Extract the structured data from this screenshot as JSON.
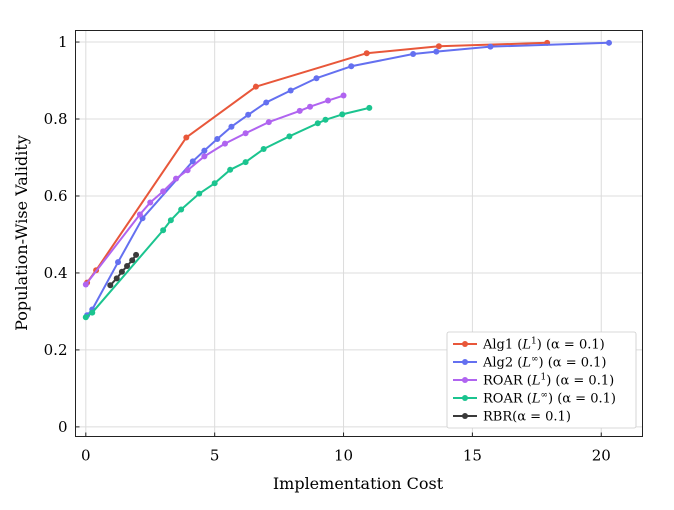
{
  "chart_data": {
    "type": "line",
    "title": "",
    "xlabel": "Implementation Cost",
    "ylabel": "Population-Wise Validity",
    "xlim": [
      -0.4,
      21.6
    ],
    "ylim": [
      -0.025,
      1.03
    ],
    "xticks": [
      0,
      5,
      10,
      15,
      20
    ],
    "xtick_labels": [
      "0",
      "5",
      "10",
      "15",
      "20"
    ],
    "yticks": [
      0,
      0.2,
      0.4,
      0.6,
      0.8,
      1
    ],
    "ytick_labels": [
      "0",
      "0.2",
      "0.4",
      "0.6",
      "0.8",
      "1"
    ],
    "grid": true,
    "legend_position": "bottom-right",
    "series": [
      {
        "name": "Alg1 (L¹) (α = 0.1)",
        "legend_base": "Alg1",
        "legend_norm_base": "L",
        "legend_norm_sup": "1",
        "legend_tail": " (α = 0.1)",
        "color": "#E8573A",
        "x": [
          0.05,
          0.4,
          3.9,
          6.6,
          10.9,
          13.7,
          17.9
        ],
        "y": [
          0.375,
          0.407,
          0.752,
          0.884,
          0.971,
          0.989,
          0.998
        ]
      },
      {
        "name": "Alg2 (L∞) (α = 0.1)",
        "legend_base": "Alg2",
        "legend_norm_base": "L",
        "legend_norm_sup": "∞",
        "legend_tail": " (α = 0.1)",
        "color": "#6470F0",
        "x": [
          0.05,
          0.25,
          1.25,
          2.2,
          4.15,
          4.6,
          5.1,
          5.65,
          6.3,
          7.0,
          7.95,
          8.95,
          10.3,
          12.7,
          13.6,
          15.7,
          20.3
        ],
        "y": [
          0.29,
          0.305,
          0.428,
          0.542,
          0.69,
          0.718,
          0.748,
          0.78,
          0.811,
          0.843,
          0.874,
          0.906,
          0.937,
          0.969,
          0.975,
          0.988,
          0.998
        ]
      },
      {
        "name": "ROAR (L¹) (α = 0.1)",
        "legend_base": "ROAR",
        "legend_norm_base": "L",
        "legend_norm_sup": "1",
        "legend_tail": " (α = 0.1)",
        "color": "#B064F0",
        "x": [
          0.0,
          2.1,
          2.5,
          3.0,
          3.5,
          3.95,
          4.6,
          5.4,
          6.2,
          7.1,
          8.3,
          8.7,
          9.4,
          10.0
        ],
        "y": [
          0.37,
          0.552,
          0.583,
          0.612,
          0.645,
          0.667,
          0.703,
          0.736,
          0.763,
          0.792,
          0.821,
          0.832,
          0.848,
          0.861
        ]
      },
      {
        "name": "ROAR (L∞) (α = 0.1)",
        "legend_base": "ROAR",
        "legend_norm_base": "L",
        "legend_norm_sup": "∞",
        "legend_tail": " (α = 0.1)",
        "color": "#1BC48F",
        "x": [
          0.0,
          0.25,
          3.0,
          3.3,
          3.7,
          4.4,
          5.0,
          5.6,
          6.2,
          6.9,
          7.9,
          9.0,
          9.3,
          9.95,
          11.0
        ],
        "y": [
          0.285,
          0.297,
          0.511,
          0.537,
          0.565,
          0.606,
          0.633,
          0.668,
          0.688,
          0.722,
          0.755,
          0.789,
          0.798,
          0.812,
          0.829
        ]
      },
      {
        "name": "RBR(α = 0.1)",
        "legend_base": "RBR(",
        "legend_norm_base": "",
        "legend_norm_sup": "",
        "legend_tail": "α = 0.1)",
        "color": "#3A3A3A",
        "x": [
          0.95,
          1.2,
          1.4,
          1.6,
          1.8,
          1.95
        ],
        "y": [
          0.368,
          0.386,
          0.403,
          0.418,
          0.433,
          0.447
        ]
      }
    ]
  }
}
